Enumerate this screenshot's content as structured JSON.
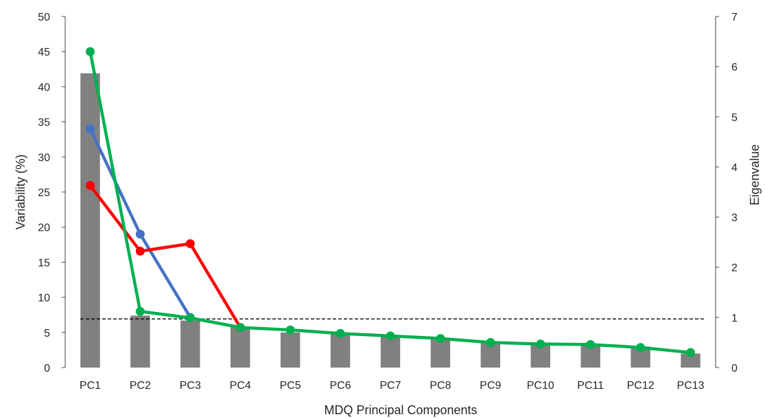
{
  "chart_data": {
    "type": "bar",
    "xlabel": "MDQ Principal Components",
    "ylabel": "Variability (%)",
    "y2label": "Eigenvalue",
    "categories": [
      "PC1",
      "PC2",
      "PC3",
      "PC4",
      "PC5",
      "PC6",
      "PC7",
      "PC8",
      "PC9",
      "PC10",
      "PC11",
      "PC12",
      "PC13"
    ],
    "ylim": [
      0,
      50
    ],
    "y2lim": [
      0,
      7
    ],
    "yticks": [
      "0",
      "5",
      "10",
      "15",
      "20",
      "25",
      "30",
      "35",
      "40",
      "45",
      "50"
    ],
    "y2ticks": [
      "0",
      "1",
      "2",
      "3",
      "4",
      "5",
      "6",
      "7"
    ],
    "grid": false,
    "legend": "none",
    "bars": {
      "axis": "left",
      "color": "#808080",
      "values": [
        41.9,
        7.4,
        6.7,
        5.8,
        5.0,
        4.8,
        4.4,
        4.2,
        3.6,
        3.5,
        3.3,
        3.0,
        2.0
      ]
    },
    "reference_line": {
      "axis": "right",
      "value": 0.97,
      "style": "dashed",
      "color": "#000000"
    },
    "series": [
      {
        "axis": "right",
        "color": "#4472C4",
        "points": [
          [
            0,
            4.76
          ],
          [
            1,
            2.66
          ],
          [
            2,
            1.0
          ]
        ]
      },
      {
        "axis": "right",
        "color": "#FF0000",
        "points": [
          [
            0,
            3.63
          ],
          [
            1,
            2.32
          ],
          [
            2,
            2.47
          ],
          [
            3,
            0.8
          ]
        ]
      },
      {
        "axis": "right",
        "color": "#00B050",
        "points": [
          [
            0,
            6.3
          ],
          [
            1,
            1.12
          ],
          [
            2,
            0.99
          ],
          [
            3,
            0.8
          ],
          [
            4,
            0.75
          ],
          [
            5,
            0.68
          ],
          [
            6,
            0.63
          ],
          [
            7,
            0.58
          ],
          [
            8,
            0.5
          ],
          [
            9,
            0.47
          ],
          [
            10,
            0.46
          ],
          [
            11,
            0.4
          ],
          [
            12,
            0.3
          ]
        ]
      }
    ]
  }
}
